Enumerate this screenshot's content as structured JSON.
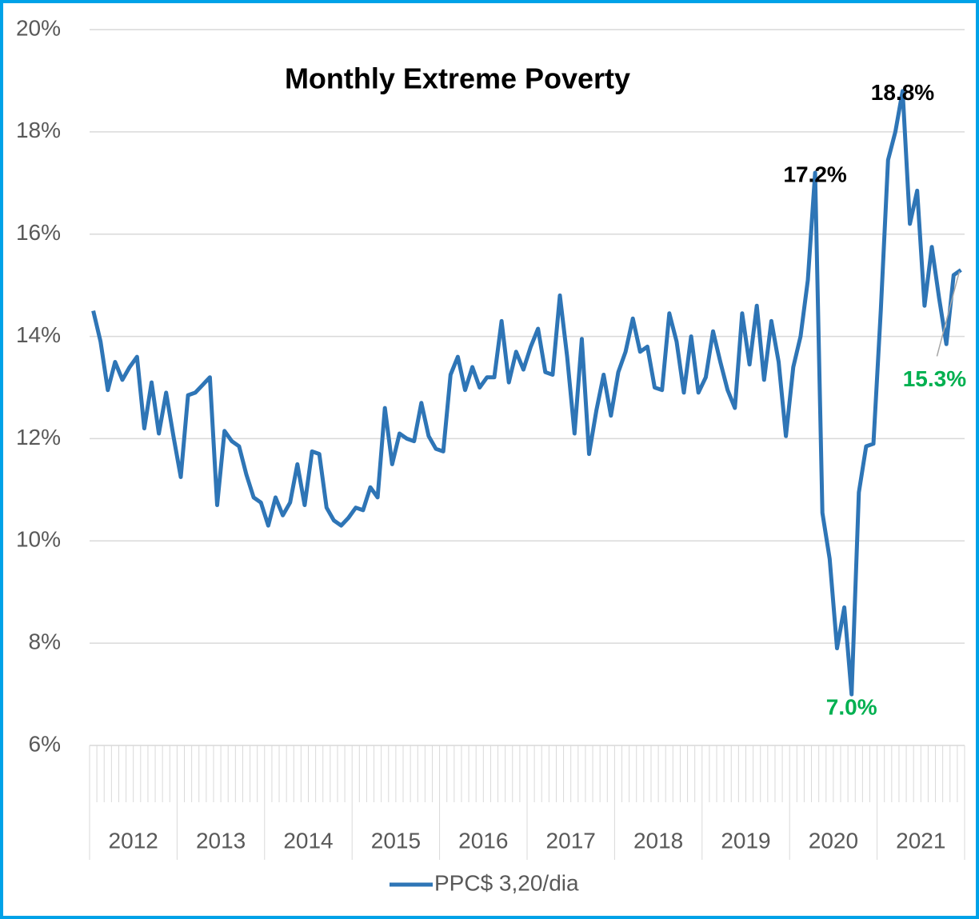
{
  "chart_data": {
    "type": "line",
    "title": "Monthly Extreme Poverty",
    "categories": [
      null,
      null,
      null,
      null,
      null,
      null,
      null,
      null,
      null,
      null,
      null,
      null,
      null,
      null,
      null,
      null,
      null,
      null,
      null,
      null,
      null,
      null,
      null,
      null,
      null,
      null,
      null,
      null,
      null,
      null,
      null,
      null,
      null,
      null,
      null,
      null,
      null,
      null,
      null,
      null,
      null,
      null,
      null,
      null,
      null,
      null,
      null,
      null,
      null,
      null,
      null,
      null,
      null,
      null,
      null,
      null,
      null,
      null,
      null,
      null,
      null,
      null,
      null,
      null,
      null,
      null,
      null,
      null,
      null,
      null,
      null,
      null,
      null,
      null,
      null,
      null,
      null,
      null,
      null,
      null,
      null,
      null,
      null,
      null,
      null,
      null,
      null,
      null,
      null,
      null,
      null,
      null,
      null,
      null,
      null,
      null,
      null,
      null,
      null,
      null,
      null,
      null,
      null,
      null,
      null,
      null,
      null,
      null,
      null,
      null,
      null,
      null,
      null,
      null,
      null,
      null,
      null,
      null,
      null,
      null
    ],
    "group_labels": [
      "2012",
      "2013",
      "2014",
      "2015",
      "2016",
      "2017",
      "2018",
      "2019",
      "2020",
      "2021"
    ],
    "series": [
      {
        "name": "PPC$ 3,20/dia",
        "color": "#2e75b6",
        "values": [
          14.5,
          13.9,
          12.95,
          13.5,
          13.15,
          13.4,
          13.6,
          12.2,
          13.1,
          12.1,
          12.9,
          12.05,
          11.25,
          12.85,
          12.9,
          13.05,
          13.2,
          10.7,
          12.15,
          11.95,
          11.85,
          11.3,
          10.85,
          10.75,
          10.3,
          10.85,
          10.5,
          10.75,
          11.5,
          10.7,
          11.75,
          11.7,
          10.65,
          10.4,
          10.3,
          10.45,
          10.65,
          10.6,
          11.05,
          10.85,
          12.6,
          11.5,
          12.1,
          12.0,
          11.95,
          12.7,
          12.05,
          11.8,
          11.75,
          13.25,
          13.6,
          12.95,
          13.4,
          13.0,
          13.2,
          13.2,
          14.3,
          13.1,
          13.7,
          13.35,
          13.8,
          14.15,
          13.3,
          13.25,
          14.8,
          13.6,
          12.1,
          13.95,
          11.7,
          12.55,
          13.25,
          12.45,
          13.3,
          13.7,
          14.35,
          13.7,
          13.8,
          13.0,
          12.95,
          14.45,
          13.9,
          12.9,
          14.0,
          12.9,
          13.2,
          14.1,
          13.5,
          12.95,
          12.6,
          14.45,
          13.45,
          14.6,
          13.15,
          14.3,
          13.5,
          12.05,
          13.4,
          14.0,
          15.1,
          17.2,
          10.55,
          9.65,
          7.9,
          8.7,
          7.0,
          10.95,
          11.85,
          11.9,
          14.5,
          17.45,
          18.0,
          18.8,
          16.2,
          16.85,
          14.6,
          15.75,
          14.75,
          13.85,
          15.2,
          15.3
        ],
        "value_labels": [
          null,
          null,
          null,
          null,
          null,
          null,
          null,
          null,
          null,
          null,
          null,
          null,
          null,
          null,
          null,
          null,
          null,
          null,
          null,
          null,
          null,
          null,
          null,
          null,
          null,
          null,
          null,
          null,
          null,
          null,
          null,
          null,
          null,
          null,
          null,
          null,
          null,
          null,
          null,
          null,
          null,
          null,
          null,
          null,
          null,
          null,
          null,
          null,
          null,
          null,
          null,
          null,
          null,
          null,
          null,
          null,
          null,
          null,
          null,
          null,
          null,
          null,
          null,
          null,
          null,
          null,
          null,
          null,
          null,
          null,
          null,
          null,
          null,
          null,
          null,
          null,
          null,
          null,
          null,
          null,
          null,
          null,
          null,
          null,
          null,
          null,
          null,
          null,
          null,
          null,
          null,
          null,
          null,
          null,
          null,
          null,
          null,
          null,
          null,
          "17.2%",
          null,
          null,
          null,
          null,
          "7.0%",
          null,
          null,
          null,
          null,
          null,
          null,
          "18.8%",
          null,
          null,
          null,
          null,
          null,
          null,
          null,
          "15.3%"
        ]
      }
    ],
    "label_color": "#000000",
    "low_label_color": "#00b050",
    "ylim": [
      6,
      20
    ],
    "yticks": [
      {
        "value": 6,
        "label": "6%"
      },
      {
        "value": 8,
        "label": "8%"
      },
      {
        "value": 10,
        "label": "10%"
      },
      {
        "value": 12,
        "label": "12%"
      },
      {
        "value": 14,
        "label": "14%"
      },
      {
        "value": 16,
        "label": "16%"
      },
      {
        "value": 18,
        "label": "18%"
      },
      {
        "value": 20,
        "label": "20%"
      }
    ],
    "grid": true,
    "legend": "bottom"
  }
}
